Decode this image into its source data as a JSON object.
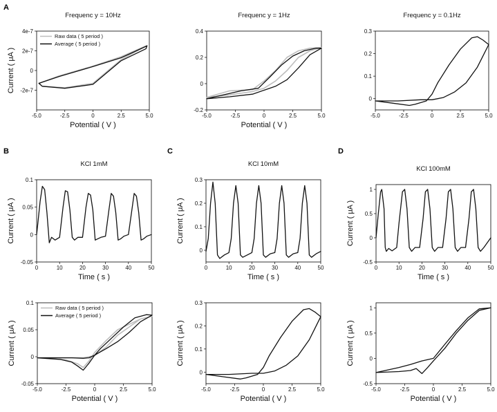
{
  "chart_data": [
    {
      "id": "a1",
      "panel_label": "A",
      "type": "line",
      "title": "Frequenc y = 10Hz",
      "xlabel": "Potential ( V )",
      "ylabel": "Current ( μA )",
      "xlim": [
        -5,
        5
      ],
      "ylim": [
        -4e-07,
        4e-07
      ],
      "xticks": [
        -5,
        -2.5,
        0,
        2.5,
        5
      ],
      "xtick_labels": [
        "-5.0",
        "-2.5",
        "0",
        "2.5",
        "5.0"
      ],
      "yticks": [
        -2e-07,
        0,
        2e-07,
        4e-07
      ],
      "ytick_labels": [
        "-2e-7",
        "0",
        "2e-7",
        "4e-7"
      ],
      "legend": {
        "placement": "top-left",
        "entries": [
          "Raw data ( 5 period )",
          "Average ( 5 period )"
        ]
      },
      "series": [
        {
          "name": "Raw data ( 5 period )",
          "style": "raw",
          "x": [
            -4.8,
            -3,
            0,
            2.5,
            4.8,
            2.5,
            0,
            -2.5,
            -4.5,
            -4.8
          ],
          "y": [
            -1.3e-07,
            -5.5e-08,
            4.5e-08,
            1.4e-07,
            2.55e-07,
            1.1e-07,
            -1.3e-07,
            -1.75e-07,
            -1.6e-07,
            -1.3e-07
          ]
        },
        {
          "name": "Average ( 5 period )",
          "style": "avg",
          "x": [
            -4.8,
            -3,
            0,
            2.5,
            4.8,
            4.7,
            2.5,
            0,
            -2.5,
            -4.5,
            -4.8
          ],
          "y": [
            -1.3e-07,
            -6e-08,
            4e-08,
            1.3e-07,
            2.5e-07,
            2.2e-07,
            1e-07,
            -1.4e-07,
            -1.8e-07,
            -1.6e-07,
            -1.3e-07
          ]
        }
      ]
    },
    {
      "id": "a2",
      "type": "line",
      "title": "Frequenc y = 1Hz",
      "xlabel": "Potential ( V )",
      "ylabel": "",
      "xlim": [
        -5,
        5
      ],
      "ylim": [
        -0.2,
        0.4
      ],
      "xticks": [
        -5,
        -2.5,
        0,
        2.5,
        5
      ],
      "xtick_labels": [
        "-5.0",
        "-2.5",
        "0",
        "2.5",
        "5.0"
      ],
      "yticks": [
        -0.2,
        0,
        0.2,
        0.4
      ],
      "ytick_labels": [
        "-0.2",
        "0",
        "0.2",
        "0.4"
      ],
      "series": [
        {
          "name": "Raw data",
          "style": "raw",
          "x": [
            -5,
            -3,
            -1,
            0,
            1,
            2,
            3,
            4,
            5,
            4,
            3,
            2,
            1,
            0,
            -1,
            -3,
            -5
          ],
          "y": [
            -0.105,
            -0.085,
            -0.06,
            -0.035,
            0.02,
            0.1,
            0.2,
            0.25,
            0.275,
            0.27,
            0.25,
            0.2,
            0.1,
            0.02,
            -0.045,
            -0.055,
            -0.105
          ]
        },
        {
          "name": "Average",
          "style": "avg",
          "x": [
            -5,
            -3,
            -1,
            0,
            1,
            2,
            3,
            4,
            5,
            4.5,
            3.5,
            2.5,
            1.5,
            0.5,
            -0.5,
            -2,
            -5
          ],
          "y": [
            -0.115,
            -0.1,
            -0.08,
            -0.05,
            -0.02,
            0.03,
            0.12,
            0.22,
            0.27,
            0.27,
            0.25,
            0.21,
            0.14,
            0.05,
            -0.035,
            -0.055,
            -0.115
          ]
        }
      ]
    },
    {
      "id": "a3",
      "type": "line",
      "title": "Frequenc y = 0.1Hz",
      "xlabel": "",
      "ylabel": "",
      "xlim": [
        -5,
        5
      ],
      "ylim": [
        -0.05,
        0.3
      ],
      "xticks": [
        -5,
        -2.5,
        0,
        2.5,
        5
      ],
      "xtick_labels": [
        "-5.0",
        "-2.5",
        "0",
        "2.5",
        "5.0"
      ],
      "yticks": [
        0,
        0.1,
        0.2,
        0.3
      ],
      "ytick_labels": [
        "0",
        "0.1",
        "0.2",
        "0.3"
      ],
      "series": [
        {
          "name": "Average",
          "style": "avg",
          "x": [
            -5,
            -3.5,
            -2,
            -1.5,
            -0.5,
            0,
            0.5,
            1.5,
            2.5,
            3.5,
            4,
            4.5,
            5,
            4.5,
            4,
            3,
            2,
            1,
            0,
            -1,
            -3,
            -5
          ],
          "y": [
            -0.01,
            -0.02,
            -0.03,
            -0.025,
            -0.01,
            0.02,
            0.07,
            0.15,
            0.22,
            0.27,
            0.275,
            0.26,
            0.24,
            0.19,
            0.14,
            0.07,
            0.03,
            0.005,
            -0.005,
            -0.005,
            -0.01,
            -0.01
          ]
        }
      ]
    },
    {
      "id": "b1",
      "panel_label": "B",
      "type": "line",
      "title": "KCl 1mM",
      "xlabel": "Time ( s )",
      "ylabel": "Current ( μA )",
      "xlim": [
        0,
        50
      ],
      "ylim": [
        -0.05,
        0.1
      ],
      "xticks": [
        0,
        10,
        20,
        30,
        40,
        50
      ],
      "xtick_labels": [
        "0",
        "10",
        "20",
        "30",
        "40",
        "50"
      ],
      "yticks": [
        -0.05,
        0,
        0.05,
        0.1
      ],
      "ytick_labels": [
        "-0.05",
        "0",
        "0.05",
        "0.1"
      ],
      "series": [
        {
          "name": "Current",
          "style": "avg",
          "x": [
            0,
            0.5,
            1.5,
            2.5,
            3.5,
            4.5,
            5.5,
            6.5,
            8,
            10,
            11.5,
            12.5,
            13.5,
            14.5,
            15.5,
            16.5,
            18,
            20,
            21.5,
            22.5,
            23.5,
            24.5,
            25.5,
            26.5,
            28,
            30,
            31.5,
            32.5,
            33.5,
            34.5,
            35.5,
            36.5,
            38,
            40,
            41.5,
            42.5,
            43.5,
            44.5,
            45.5,
            46.5,
            48,
            50
          ],
          "y": [
            0,
            0.02,
            0.06,
            0.088,
            0.082,
            0.04,
            -0.015,
            -0.005,
            -0.01,
            -0.005,
            0.05,
            0.08,
            0.078,
            0.045,
            -0.005,
            -0.01,
            -0.005,
            -0.005,
            0.05,
            0.075,
            0.072,
            0.045,
            -0.01,
            -0.008,
            -0.005,
            -0.003,
            0.045,
            0.075,
            0.07,
            0.04,
            -0.01,
            -0.008,
            -0.003,
            0,
            0.045,
            0.075,
            0.07,
            0.04,
            -0.01,
            -0.008,
            -0.003,
            0
          ]
        }
      ]
    },
    {
      "id": "c1",
      "panel_label": "C",
      "type": "line",
      "title": "KCl 10mM",
      "xlabel": "Time ( s )",
      "ylabel": "Current ( μA )",
      "xlim": [
        0,
        50
      ],
      "ylim": [
        -0.05,
        0.3
      ],
      "xticks": [
        0,
        10,
        20,
        30,
        40,
        50
      ],
      "xtick_labels": [
        "0",
        "10",
        "20",
        "30",
        "40",
        "50"
      ],
      "yticks": [
        0,
        0.1,
        0.2,
        0.3
      ],
      "ytick_labels": [
        "0",
        "0.1",
        "0.2",
        "0.3"
      ],
      "series": [
        {
          "name": "Current",
          "style": "avg",
          "x": [
            0,
            1,
            2,
            3,
            4,
            5,
            6,
            8,
            10,
            11,
            12,
            13,
            14,
            15,
            16,
            18,
            20,
            21,
            22,
            23,
            24,
            25,
            26,
            28,
            30,
            31,
            32,
            33,
            34,
            35,
            36,
            38,
            40,
            41,
            42,
            43,
            44,
            45,
            46,
            48,
            50
          ],
          "y": [
            -0.005,
            0.05,
            0.2,
            0.29,
            0.2,
            -0.02,
            -0.035,
            -0.02,
            -0.01,
            0.05,
            0.2,
            0.275,
            0.2,
            -0.02,
            -0.03,
            -0.02,
            -0.01,
            0.05,
            0.2,
            0.275,
            0.2,
            -0.02,
            -0.03,
            -0.015,
            -0.01,
            0.05,
            0.2,
            0.275,
            0.2,
            -0.02,
            -0.03,
            -0.015,
            -0.01,
            0.05,
            0.2,
            0.275,
            0.2,
            -0.02,
            -0.03,
            -0.015,
            -0.005
          ]
        }
      ]
    },
    {
      "id": "d1",
      "panel_label": "D",
      "type": "line",
      "title": "KCl 100mM",
      "xlabel": "Time ( s )",
      "ylabel": "Current ( μA )",
      "xlim": [
        0,
        50
      ],
      "ylim": [
        -0.5,
        1.1
      ],
      "xticks": [
        0,
        10,
        20,
        30,
        40,
        50
      ],
      "xtick_labels": [
        "0",
        "10",
        "20",
        "30",
        "40",
        "50"
      ],
      "yticks": [
        -0.5,
        0,
        0.5,
        1
      ],
      "ytick_labels": [
        "-0.5",
        "0",
        "0.5",
        "1"
      ],
      "series": [
        {
          "name": "Current",
          "style": "avg",
          "x": [
            0,
            1,
            2,
            2.5,
            3.5,
            4,
            4.5,
            5.5,
            7,
            9,
            10,
            11.5,
            12.5,
            13.5,
            14.5,
            15.5,
            17,
            19,
            20.5,
            21.5,
            22.5,
            23.5,
            24.5,
            25.5,
            27,
            29,
            30.5,
            31.5,
            32.5,
            33.5,
            34.5,
            35.5,
            37,
            39,
            40.5,
            41.5,
            42.5,
            43.5,
            44.5,
            45.5,
            47,
            50
          ],
          "y": [
            0,
            0.5,
            0.95,
            1.0,
            0.6,
            -0.2,
            -0.28,
            -0.22,
            -0.27,
            -0.2,
            0.3,
            0.95,
            1.0,
            0.6,
            -0.2,
            -0.28,
            -0.2,
            -0.2,
            0.4,
            0.95,
            1.0,
            0.6,
            -0.2,
            -0.28,
            -0.2,
            -0.2,
            0.4,
            0.95,
            1.0,
            0.6,
            -0.2,
            -0.28,
            -0.2,
            -0.2,
            0.4,
            0.95,
            1.0,
            0.6,
            -0.2,
            -0.28,
            -0.2,
            0
          ]
        }
      ]
    },
    {
      "id": "b2",
      "type": "line",
      "title": "",
      "xlabel": "Potential ( V )",
      "ylabel": "Current ( μA )",
      "xlim": [
        -5,
        5
      ],
      "ylim": [
        -0.05,
        0.1
      ],
      "xticks": [
        -5,
        -2.5,
        0,
        2.5,
        5
      ],
      "xtick_labels": [
        "-5.0",
        "-2.5",
        "0",
        "2.5",
        "5.0"
      ],
      "yticks": [
        -0.05,
        0,
        0.05,
        0.1
      ],
      "ytick_labels": [
        "-0.05",
        "0",
        "0.05",
        "0.1"
      ],
      "legend": {
        "placement": "top-left",
        "entries": [
          "Raw data ( 5 period )",
          "Average ( 5 period )"
        ]
      },
      "series": [
        {
          "name": "Raw data ( 5 period )",
          "style": "raw",
          "x": [
            -5,
            -2.5,
            -1.5,
            -1,
            -0.5,
            0,
            1,
            2,
            3,
            4,
            5,
            4,
            3,
            2,
            1,
            0,
            -1,
            -3,
            -5
          ],
          "y": [
            -0.002,
            -0.006,
            -0.013,
            -0.02,
            -0.008,
            0.008,
            0.03,
            0.05,
            0.06,
            0.07,
            0.075,
            0.07,
            0.055,
            0.04,
            0.018,
            0.002,
            -0.002,
            -0.002,
            -0.002
          ]
        },
        {
          "name": "Average ( 5 period )",
          "style": "avg",
          "x": [
            -5,
            -3,
            -2,
            -1.5,
            -1,
            -0.5,
            0,
            1,
            2,
            3,
            4,
            5,
            4.5,
            3.5,
            2.5,
            1.5,
            0.5,
            0,
            -0.5,
            -1,
            -2,
            -3,
            -5
          ],
          "y": [
            -0.002,
            -0.005,
            -0.01,
            -0.017,
            -0.025,
            -0.012,
            0.003,
            0.015,
            0.028,
            0.045,
            0.065,
            0.077,
            0.078,
            0.072,
            0.055,
            0.035,
            0.015,
            0.003,
            -0.002,
            -0.003,
            -0.002,
            -0.002,
            -0.002
          ]
        }
      ]
    },
    {
      "id": "c2",
      "type": "line",
      "title": "",
      "xlabel": "Potential ( V )",
      "ylabel": "Current ( μA )",
      "xlim": [
        -5,
        5
      ],
      "ylim": [
        -0.05,
        0.3
      ],
      "xticks": [
        -5,
        -2.5,
        0,
        2.5,
        5
      ],
      "xtick_labels": [
        "-5.0",
        "-2.5",
        "0",
        "2.5",
        "5.0"
      ],
      "yticks": [
        0,
        0.1,
        0.2,
        0.3
      ],
      "ytick_labels": [
        "0",
        "0.1",
        "0.2",
        "0.3"
      ],
      "series": [
        {
          "name": "Average",
          "style": "avg",
          "x": [
            -5,
            -3.5,
            -2,
            -1.5,
            -0.5,
            0,
            0.5,
            1.5,
            2.5,
            3.5,
            4,
            4.5,
            5,
            4.5,
            4,
            3,
            2,
            1,
            0,
            -1,
            -3,
            -5
          ],
          "y": [
            -0.01,
            -0.02,
            -0.03,
            -0.025,
            -0.01,
            0.02,
            0.07,
            0.15,
            0.22,
            0.27,
            0.275,
            0.26,
            0.24,
            0.19,
            0.14,
            0.07,
            0.03,
            0.005,
            -0.005,
            -0.005,
            -0.01,
            -0.01
          ]
        }
      ]
    },
    {
      "id": "d2",
      "type": "line",
      "title": "",
      "xlabel": "Potential ( V )",
      "ylabel": "Current ( μA )",
      "xlim": [
        -5,
        5
      ],
      "ylim": [
        -0.5,
        1.1
      ],
      "xticks": [
        -5,
        -2.5,
        0,
        2.5,
        5
      ],
      "xtick_labels": [
        "-5.0",
        "-2.5",
        "0",
        "2.5",
        "5.0"
      ],
      "yticks": [
        -0.5,
        0,
        0.5,
        1
      ],
      "ytick_labels": [
        "-0.5",
        "0",
        "0.5",
        "1"
      ],
      "series": [
        {
          "name": "Average",
          "style": "avg",
          "x": [
            -5,
            -3,
            -2,
            -1.5,
            -1,
            -0.5,
            0,
            1,
            2,
            3,
            4,
            5,
            4,
            3,
            2,
            1,
            0,
            -1,
            -2,
            -3,
            -5
          ],
          "y": [
            -0.28,
            -0.26,
            -0.24,
            -0.2,
            -0.3,
            -0.18,
            -0.05,
            0.2,
            0.5,
            0.75,
            0.95,
            1.0,
            0.98,
            0.8,
            0.55,
            0.28,
            0,
            -0.05,
            -0.12,
            -0.18,
            -0.28
          ]
        }
      ]
    }
  ]
}
